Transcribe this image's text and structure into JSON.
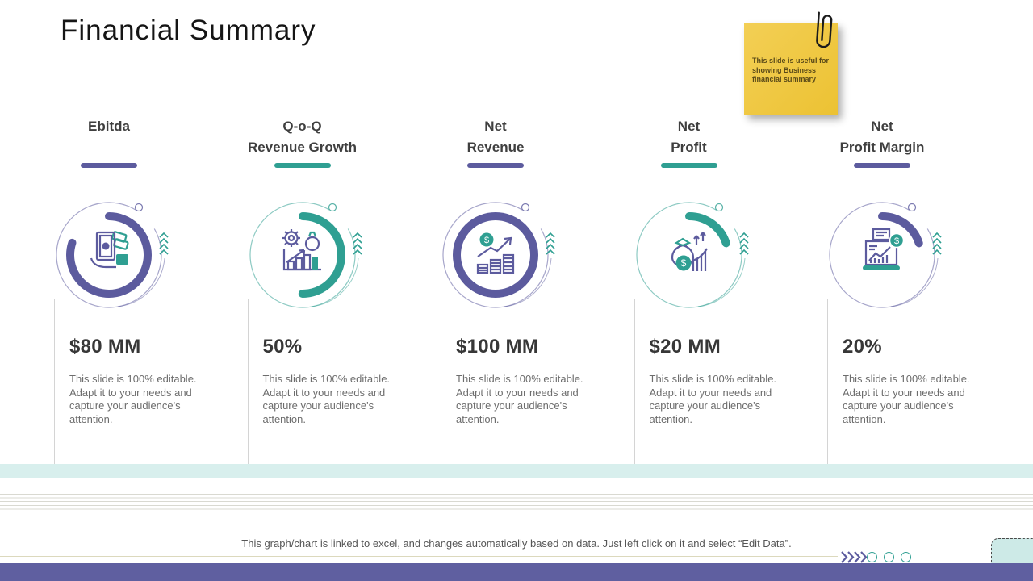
{
  "slide": {
    "title": "Financial Summary",
    "sticky_note": {
      "text": "This  slide is useful for showing Business financial summary",
      "icon": "paperclip-icon",
      "bg_color": "#efc53d"
    },
    "columns": [
      {
        "heading_line1": "Ebitda",
        "heading_line2": "",
        "accent_color": "#5c5b9e",
        "arc_percent": 80,
        "icon": "cash-payment-icon",
        "value": "$80 MM",
        "description": "This slide is 100% editable. Adapt it to your needs and capture your audience's attention."
      },
      {
        "heading_line1": "Q-o-Q",
        "heading_line2": "Revenue Growth",
        "accent_color": "#2f9f92",
        "arc_percent": 50,
        "icon": "growth-gear-icon",
        "value": "50%",
        "description": "This slide is 100% editable. Adapt it to your needs and capture your audience's attention."
      },
      {
        "heading_line1": "Net",
        "heading_line2": "Revenue",
        "accent_color": "#5c5b9e",
        "arc_percent": 100,
        "icon": "revenue-arrow-icon",
        "value": "$100 MM",
        "description": "This slide is 100% editable. Adapt it to your needs and capture your audience's attention."
      },
      {
        "heading_line1": "Net",
        "heading_line2": "Profit",
        "accent_color": "#2f9f92",
        "arc_percent": 20,
        "icon": "money-bag-icon",
        "value": "$20 MM",
        "description": "This slide is 100% editable. Adapt it to your needs and capture your audience's attention."
      },
      {
        "heading_line1": "Net",
        "heading_line2": "Profit Margin",
        "accent_color": "#5c5b9e",
        "arc_percent": 20,
        "icon": "laptop-analytics-icon",
        "value": "20%",
        "description": "This slide is 100% editable. Adapt it to your needs and capture your audience's attention."
      }
    ],
    "footer": {
      "note": "This graph/chart is linked to excel, and changes automatically based on data. Just left click on it and select “Edit Data”.",
      "icons": [
        "forward-chevrons-icon",
        "pagination-dots-icon",
        "corner-tab-icon"
      ],
      "dot_count": 3
    },
    "colors": {
      "purple": "#5c5b9e",
      "teal": "#2f9f92",
      "band": "#d8efed",
      "bottom_bar": "#5f5fa0",
      "sticky": "#efc53d"
    }
  }
}
